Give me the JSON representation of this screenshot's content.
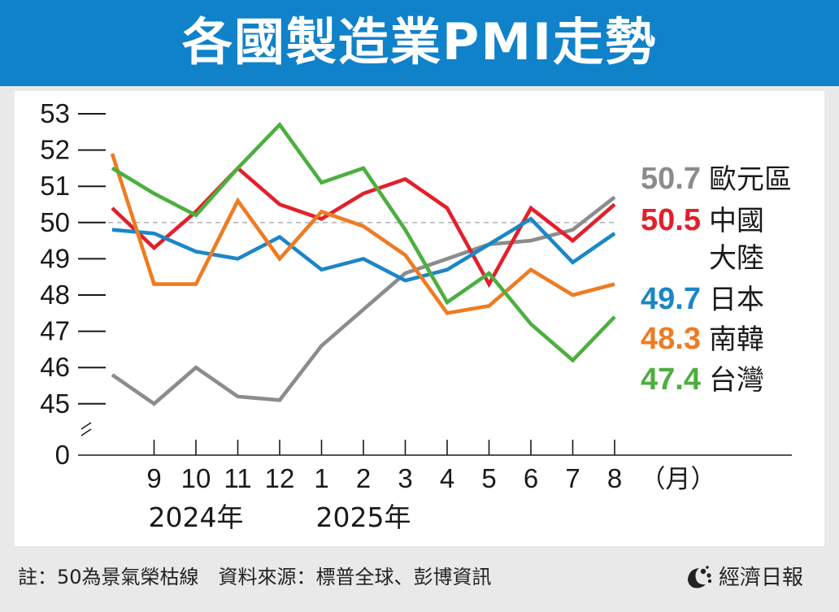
{
  "title": "各國製造業PMI走勢",
  "footer": {
    "note": "註：50為景氣榮枯線　資料來源：標普全球、彭博資訊",
    "brand": "經濟日報",
    "brand_logo_icon": "news-logo-icon"
  },
  "colors": {
    "header": "#0f82c9",
    "eurozone": "#8c8c8c",
    "china": "#e2202c",
    "japan": "#1b86c8",
    "korea": "#ef7b22",
    "taiwan": "#4caf3f"
  },
  "chart_data": {
    "type": "line",
    "x": [
      "8",
      "9",
      "10",
      "11",
      "12",
      "1",
      "2",
      "3",
      "4",
      "5",
      "6",
      "7",
      "8"
    ],
    "x_tick_labels": [
      "9",
      "10",
      "11",
      "12",
      "1",
      "2",
      "3",
      "4",
      "5",
      "6",
      "7",
      "8"
    ],
    "x_unit": "（月）",
    "year_labels": [
      "2024年",
      "2025年"
    ],
    "y_ticks": [
      53,
      52,
      51,
      50,
      49,
      48,
      47,
      46,
      45,
      0
    ],
    "y_tick_suffix": "—",
    "ylim": [
      44.5,
      53
    ],
    "reference_line": 50,
    "axis_break": true,
    "series": [
      {
        "name": "歐元區",
        "last_label": "50.7",
        "color": "#8c8c8c",
        "values": [
          45.8,
          45.0,
          46.0,
          45.2,
          45.1,
          46.6,
          47.6,
          48.6,
          49.0,
          49.4,
          49.5,
          49.8,
          50.7
        ]
      },
      {
        "name": "中國大陸",
        "name_lines": [
          "中國",
          "大陸"
        ],
        "last_label": "50.5",
        "color": "#e2202c",
        "values": [
          50.4,
          49.3,
          50.3,
          51.5,
          50.5,
          50.1,
          50.8,
          51.2,
          50.4,
          48.3,
          50.4,
          49.5,
          50.5
        ]
      },
      {
        "name": "日本",
        "last_label": "49.7",
        "color": "#1b86c8",
        "values": [
          49.8,
          49.7,
          49.2,
          49.0,
          49.6,
          48.7,
          49.0,
          48.4,
          48.7,
          49.4,
          50.1,
          48.9,
          49.7
        ]
      },
      {
        "name": "南韓",
        "last_label": "48.3",
        "color": "#ef7b22",
        "values": [
          51.9,
          48.3,
          48.3,
          50.6,
          49.0,
          50.3,
          49.9,
          49.1,
          47.5,
          47.7,
          48.7,
          48.0,
          48.3
        ]
      },
      {
        "name": "台灣",
        "last_label": "47.4",
        "color": "#4caf3f",
        "values": [
          51.5,
          50.8,
          50.2,
          51.5,
          52.7,
          51.1,
          51.5,
          49.8,
          47.8,
          48.6,
          47.2,
          46.2,
          47.4
        ]
      }
    ]
  }
}
